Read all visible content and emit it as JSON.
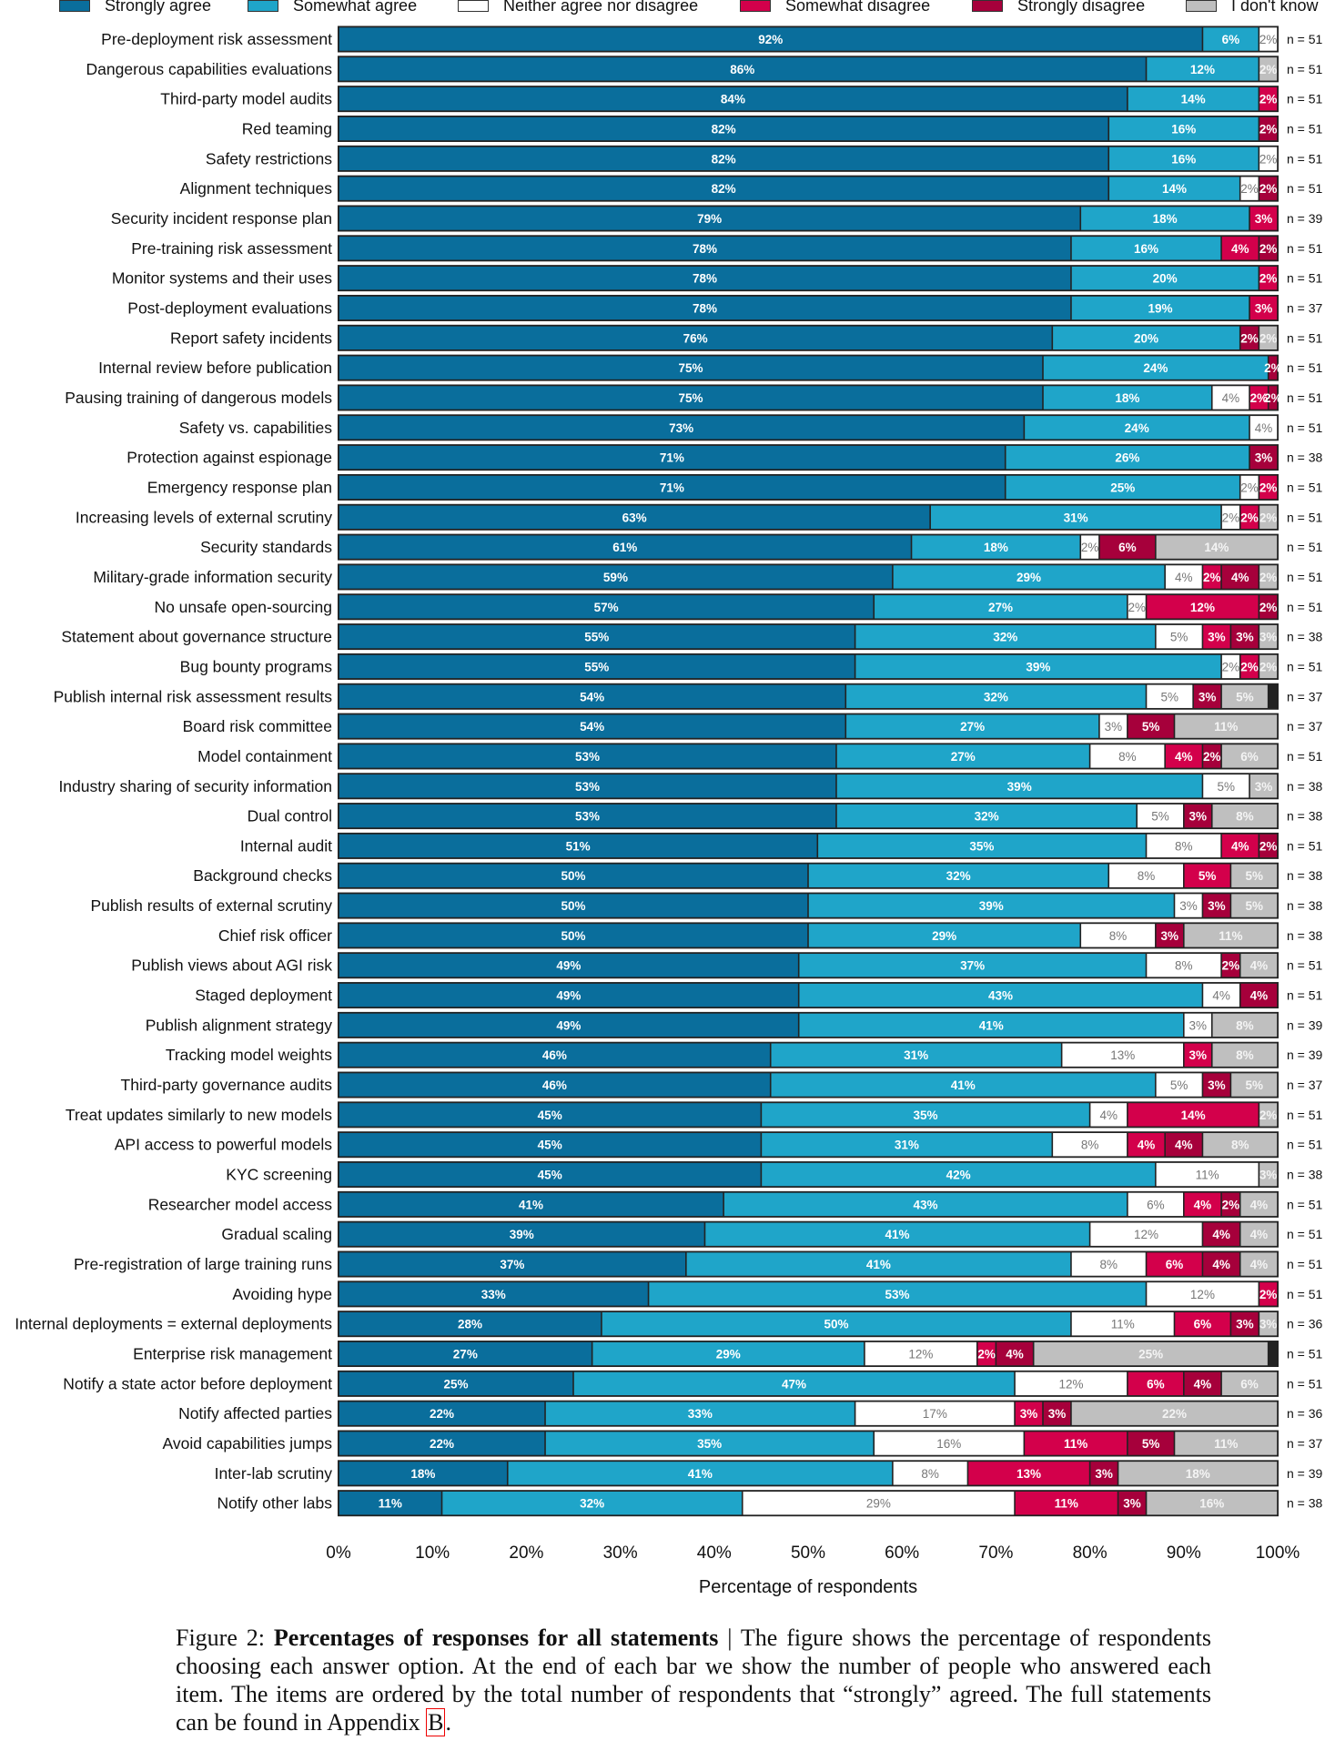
{
  "chart_data": {
    "type": "bar",
    "orientation": "horizontal",
    "stacked": true,
    "xlabel": "Percentage of respondents",
    "xlim": [
      0,
      100
    ],
    "xticks": [
      "0%",
      "10%",
      "20%",
      "30%",
      "40%",
      "50%",
      "60%",
      "70%",
      "80%",
      "90%",
      "100%"
    ],
    "legend_position": "top",
    "series": [
      {
        "name": "Strongly agree",
        "color": "#0a6e9c"
      },
      {
        "name": "Somewhat agree",
        "color": "#1fa5c9"
      },
      {
        "name": "Neither agree nor disagree",
        "color": "#ffffff"
      },
      {
        "name": "Somewhat disagree",
        "color": "#d3004b"
      },
      {
        "name": "Strongly disagree",
        "color": "#a6003b"
      },
      {
        "name": "I don't know",
        "color": "#bfbfbf"
      }
    ],
    "rows": [
      {
        "label": "Pre-deployment risk assessment",
        "values": [
          92,
          6,
          2,
          0,
          0,
          0
        ],
        "n": "n = 51"
      },
      {
        "label": "Dangerous capabilities evaluations",
        "values": [
          86,
          12,
          0,
          0,
          0,
          2
        ],
        "n": "n = 51"
      },
      {
        "label": "Third-party model audits",
        "values": [
          84,
          14,
          0,
          2,
          0,
          0
        ],
        "n": "n = 51"
      },
      {
        "label": "Red teaming",
        "values": [
          82,
          16,
          0,
          0,
          2,
          0
        ],
        "n": "n = 51"
      },
      {
        "label": "Safety restrictions",
        "values": [
          82,
          16,
          2,
          0,
          0,
          0
        ],
        "n": "n = 51"
      },
      {
        "label": "Alignment techniques",
        "values": [
          82,
          14,
          2,
          0,
          2,
          0
        ],
        "n": "n = 51"
      },
      {
        "label": "Security incident response plan",
        "values": [
          79,
          18,
          0,
          3,
          0,
          0
        ],
        "n": "n = 39"
      },
      {
        "label": "Pre-training risk assessment",
        "values": [
          78,
          16,
          0,
          4,
          2,
          0
        ],
        "n": "n = 51"
      },
      {
        "label": "Monitor systems and their uses",
        "values": [
          78,
          20,
          0,
          2,
          0,
          0
        ],
        "n": "n = 51"
      },
      {
        "label": "Post-deployment evaluations",
        "values": [
          78,
          19,
          0,
          3,
          0,
          0
        ],
        "n": "n = 37"
      },
      {
        "label": "Report safety incidents",
        "values": [
          76,
          20,
          0,
          0,
          2,
          2
        ],
        "n": "n = 51"
      },
      {
        "label": "Internal review before publication",
        "values": [
          75,
          24,
          0,
          0,
          2,
          0
        ],
        "n": "n = 51"
      },
      {
        "label": "Pausing training of dangerous models",
        "values": [
          75,
          18,
          4,
          2,
          2,
          0
        ],
        "n": "n = 51"
      },
      {
        "label": "Safety vs. capabilities",
        "values": [
          73,
          24,
          4,
          0,
          0,
          0
        ],
        "n": "n = 51"
      },
      {
        "label": "Protection against espionage",
        "values": [
          71,
          26,
          0,
          0,
          3,
          0
        ],
        "n": "n = 38"
      },
      {
        "label": "Emergency response plan",
        "values": [
          71,
          25,
          2,
          2,
          0,
          0
        ],
        "n": "n = 51"
      },
      {
        "label": "Increasing levels of external scrutiny",
        "values": [
          63,
          31,
          2,
          2,
          0,
          2
        ],
        "n": "n = 51"
      },
      {
        "label": "Security standards",
        "values": [
          61,
          18,
          2,
          0,
          6,
          14
        ],
        "n": "n = 51"
      },
      {
        "label": "Military-grade information security",
        "values": [
          59,
          29,
          4,
          2,
          4,
          2
        ],
        "n": "n = 51"
      },
      {
        "label": "No unsafe open-sourcing",
        "values": [
          57,
          27,
          2,
          12,
          2,
          0
        ],
        "n": "n = 51"
      },
      {
        "label": "Statement about governance structure",
        "values": [
          55,
          32,
          5,
          3,
          3,
          3
        ],
        "n": "n = 38"
      },
      {
        "label": "Bug bounty programs",
        "values": [
          55,
          39,
          2,
          2,
          0,
          2
        ],
        "n": "n = 51"
      },
      {
        "label": "Publish internal risk assessment results",
        "values": [
          54,
          32,
          5,
          0,
          3,
          5
        ],
        "n": "n = 37"
      },
      {
        "label": "Board risk committee",
        "values": [
          54,
          27,
          3,
          0,
          5,
          11
        ],
        "n": "n = 37"
      },
      {
        "label": "Model containment",
        "values": [
          53,
          27,
          8,
          4,
          2,
          6
        ],
        "n": "n = 51"
      },
      {
        "label": "Industry sharing of security information",
        "values": [
          53,
          39,
          5,
          0,
          0,
          3
        ],
        "n": "n = 38"
      },
      {
        "label": "Dual control",
        "values": [
          53,
          32,
          5,
          0,
          3,
          8
        ],
        "n": "n = 38"
      },
      {
        "label": "Internal audit",
        "values": [
          51,
          35,
          8,
          4,
          2,
          0
        ],
        "n": "n = 51"
      },
      {
        "label": "Background checks",
        "values": [
          50,
          32,
          8,
          5,
          0,
          5
        ],
        "n": "n = 38"
      },
      {
        "label": "Publish results of external scrutiny",
        "values": [
          50,
          39,
          3,
          0,
          3,
          5
        ],
        "n": "n = 38"
      },
      {
        "label": "Chief risk officer",
        "values": [
          50,
          29,
          8,
          0,
          3,
          11
        ],
        "n": "n = 38"
      },
      {
        "label": "Publish views about AGI risk",
        "values": [
          49,
          37,
          8,
          0,
          2,
          4
        ],
        "n": "n = 51"
      },
      {
        "label": "Staged deployment",
        "values": [
          49,
          43,
          4,
          0,
          4,
          0
        ],
        "n": "n = 51"
      },
      {
        "label": "Publish alignment strategy",
        "values": [
          49,
          41,
          3,
          0,
          0,
          8
        ],
        "n": "n = 39"
      },
      {
        "label": "Tracking model weights",
        "values": [
          46,
          31,
          13,
          3,
          0,
          8
        ],
        "n": "n = 39"
      },
      {
        "label": "Third-party governance audits",
        "values": [
          46,
          41,
          5,
          0,
          3,
          5
        ],
        "n": "n = 37"
      },
      {
        "label": "Treat updates similarly to new models",
        "values": [
          45,
          35,
          4,
          14,
          0,
          2
        ],
        "n": "n = 51"
      },
      {
        "label": "API access to powerful models",
        "values": [
          45,
          31,
          8,
          4,
          4,
          8
        ],
        "n": "n = 51"
      },
      {
        "label": "KYC screening",
        "values": [
          45,
          42,
          11,
          0,
          0,
          3
        ],
        "n": "n = 38"
      },
      {
        "label": "Researcher model access",
        "values": [
          41,
          43,
          6,
          4,
          2,
          4
        ],
        "n": "n = 51"
      },
      {
        "label": "Gradual scaling",
        "values": [
          39,
          41,
          12,
          0,
          4,
          4
        ],
        "n": "n = 51"
      },
      {
        "label": "Pre-registration of large training runs",
        "values": [
          37,
          41,
          8,
          6,
          4,
          4
        ],
        "n": "n = 51"
      },
      {
        "label": "Avoiding hype",
        "values": [
          33,
          53,
          12,
          2,
          0,
          0
        ],
        "n": "n = 51"
      },
      {
        "label": "Internal deployments = external deployments",
        "values": [
          28,
          50,
          11,
          6,
          3,
          3
        ],
        "n": "n = 36"
      },
      {
        "label": "Enterprise risk management",
        "values": [
          27,
          29,
          12,
          2,
          4,
          25
        ],
        "n": "n = 51"
      },
      {
        "label": "Notify a state actor before deployment",
        "values": [
          25,
          47,
          12,
          6,
          4,
          6
        ],
        "n": "n = 51"
      },
      {
        "label": "Notify affected parties",
        "values": [
          22,
          33,
          17,
          3,
          3,
          22
        ],
        "n": "n = 36"
      },
      {
        "label": "Avoid capabilities jumps",
        "values": [
          22,
          35,
          16,
          11,
          5,
          11
        ],
        "n": "n = 37"
      },
      {
        "label": "Inter-lab scrutiny",
        "values": [
          18,
          41,
          8,
          13,
          3,
          18
        ],
        "n": "n = 39"
      },
      {
        "label": "Notify other labs",
        "values": [
          11,
          32,
          29,
          11,
          3,
          16
        ],
        "n": "n = 38"
      }
    ]
  },
  "caption": {
    "prefix": "Figure 2: ",
    "title": "Percentages of responses for all statements",
    "body": " | The figure shows the percentage of respondents choosing each answer option.  At the end of each bar we show the number of people who answered each item. The items are ordered by the total number of respondents that “strongly” agreed. The full statements can be found in Appendix ",
    "appendix_ref": "B",
    "end": "."
  }
}
